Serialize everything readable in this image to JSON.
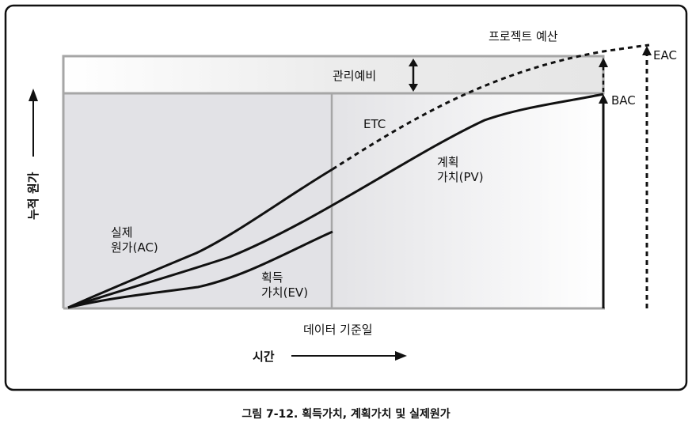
{
  "diagram": {
    "labels": {
      "management_reserve": "관리예비",
      "project_budget": "프로젝트 예산",
      "eac": "EAC",
      "bac": "BAC",
      "etc": "ETC",
      "pv_line1": "계획",
      "pv_line2": "가치(PV)",
      "ac_line1": "실제",
      "ac_line2": "원가(AC)",
      "ev_line1": "획득",
      "ev_line2": "가치(EV)",
      "data_date": "데이터 기준일",
      "y_axis": "누적 원가",
      "x_axis": "시간"
    },
    "caption": "그림 7-12. 획득가치, 계획가치 및 실제원가"
  },
  "colors": {
    "line": "#111111",
    "axis_gray": "#a6a6a6",
    "shade_left": "#e2e2e6",
    "reserve_fill": "#ececec"
  }
}
